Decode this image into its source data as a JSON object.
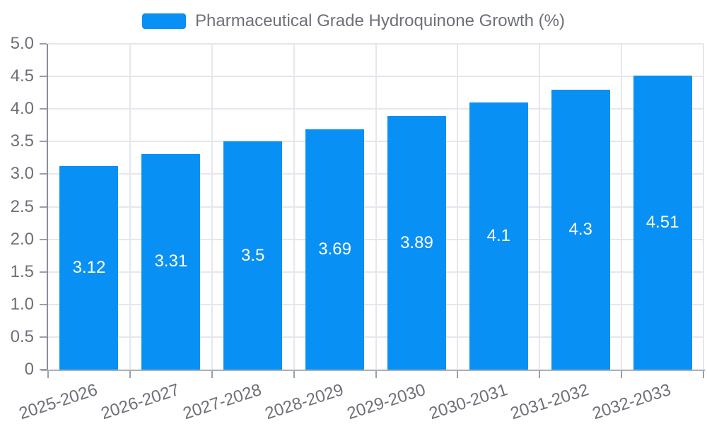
{
  "chart_data": {
    "type": "bar",
    "title": "Pharmaceutical Grade Hydroquinone Growth (%)",
    "series_name": "Pharmaceutical Grade Hydroquinone Growth (%)",
    "legend_position": "top-center",
    "categories": [
      "2025-2026",
      "2026-2027",
      "2027-2028",
      "2028-2029",
      "2029-2030",
      "2030-2031",
      "2031-2032",
      "2032-2033"
    ],
    "values": [
      3.12,
      3.31,
      3.5,
      3.69,
      3.89,
      4.1,
      4.3,
      4.51
    ],
    "value_labels": [
      "3.12",
      "3.31",
      "3.5",
      "3.69",
      "3.89",
      "4.1",
      "4.3",
      "4.51"
    ],
    "xlabel": "",
    "ylabel": "",
    "ylim": [
      0,
      5
    ],
    "ytick_step": 0.5,
    "ytick_labels": [
      "0",
      "0.5",
      "1.0",
      "1.5",
      "2.0",
      "2.5",
      "3.0",
      "3.5",
      "4.0",
      "4.5",
      "5.0"
    ],
    "grid": "horizontal and vertical gridlines on",
    "colors": {
      "bar": "#0990f5",
      "bar_label": "#ffffff",
      "axis_text": "#6e7079",
      "legend_text": "#6e7079",
      "gridline": "#e4e7ed",
      "y_axis_line": "#8a8f99",
      "x_axis_line": "#aab0b8",
      "tick": "#9aa0a8",
      "background": "#ffffff"
    }
  }
}
